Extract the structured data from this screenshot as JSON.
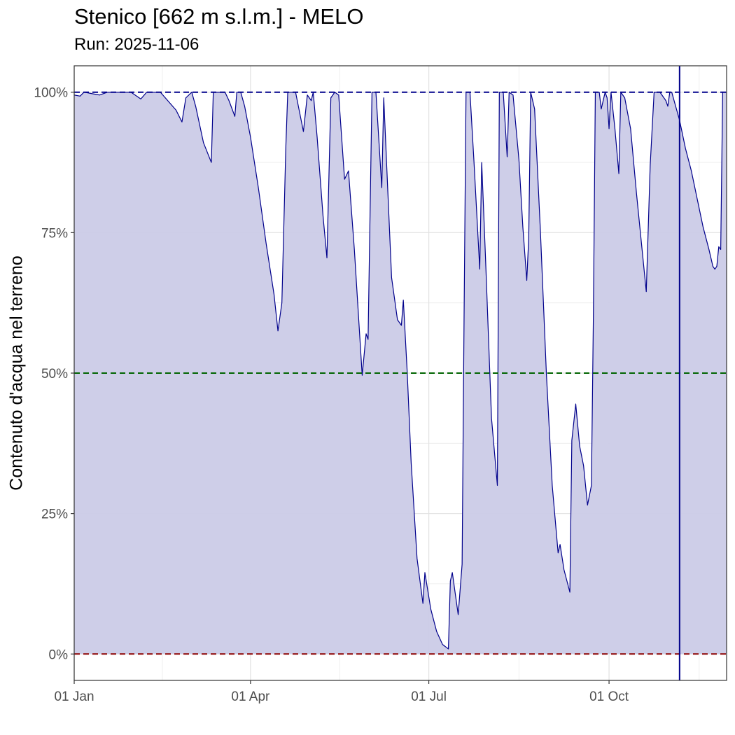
{
  "chart_data": {
    "type": "area",
    "title": "Stenico [662 m s.l.m.] - MELO",
    "subtitle": "Run: 2025-11-06",
    "ylabel": "Contenuto d'acqua nel terreno",
    "xlabel": "",
    "x_range": [
      "2025-01-01",
      "2025-11-30"
    ],
    "y_range": [
      -0.047,
      1.047
    ],
    "x_ticks": [
      {
        "date": "2025-01-01",
        "label": "01 Jan"
      },
      {
        "date": "2025-04-01",
        "label": "01 Apr"
      },
      {
        "date": "2025-07-01",
        "label": "01 Jul"
      },
      {
        "date": "2025-10-01",
        "label": "01 Oct"
      }
    ],
    "y_ticks": [
      {
        "value": 0,
        "label": "0%"
      },
      {
        "value": 0.25,
        "label": "25%"
      },
      {
        "value": 0.5,
        "label": "50%"
      },
      {
        "value": 0.75,
        "label": "75%"
      },
      {
        "value": 1,
        "label": "100%"
      }
    ],
    "reference_lines": [
      {
        "value": 1.0,
        "color": "#00008b",
        "style": "dashed"
      },
      {
        "value": 0.5,
        "color": "#006400",
        "style": "dashed"
      },
      {
        "value": 0.0,
        "color": "#8b0000",
        "style": "dashed"
      }
    ],
    "vertical_line": {
      "date": "2025-11-06",
      "color": "#00008b"
    },
    "grid": true,
    "series": [
      {
        "color": "#00008b",
        "fill": "#cbcbe7",
        "points": [
          [
            "2025-01-01",
            0.995
          ],
          [
            "2025-01-04",
            0.993
          ],
          [
            "2025-01-06",
            1.0
          ],
          [
            "2025-01-14",
            0.995
          ],
          [
            "2025-01-18",
            1.0
          ],
          [
            "2025-01-30",
            1.0
          ],
          [
            "2025-02-04",
            0.988
          ],
          [
            "2025-02-07",
            1.0
          ],
          [
            "2025-02-14",
            1.0
          ],
          [
            "2025-02-22",
            0.968
          ],
          [
            "2025-02-25",
            0.947
          ],
          [
            "2025-02-27",
            0.99
          ],
          [
            "2025-03-02",
            1.0
          ],
          [
            "2025-03-04",
            0.975
          ],
          [
            "2025-03-08",
            0.91
          ],
          [
            "2025-03-12",
            0.875
          ],
          [
            "2025-03-13",
            1.0
          ],
          [
            "2025-03-19",
            1.0
          ],
          [
            "2025-03-21",
            0.985
          ],
          [
            "2025-03-24",
            0.957
          ],
          [
            "2025-03-25",
            1.0
          ],
          [
            "2025-03-27",
            1.0
          ],
          [
            "2025-03-29",
            0.975
          ],
          [
            "2025-04-01",
            0.92
          ],
          [
            "2025-04-05",
            0.83
          ],
          [
            "2025-04-09",
            0.73
          ],
          [
            "2025-04-13",
            0.64
          ],
          [
            "2025-04-15",
            0.575
          ],
          [
            "2025-04-17",
            0.625
          ],
          [
            "2025-04-19",
            0.9
          ],
          [
            "2025-04-20",
            1.0
          ],
          [
            "2025-04-24",
            1.0
          ],
          [
            "2025-04-26",
            0.965
          ],
          [
            "2025-04-28",
            0.93
          ],
          [
            "2025-04-30",
            0.995
          ],
          [
            "2025-05-02",
            0.985
          ],
          [
            "2025-05-03",
            1.0
          ],
          [
            "2025-05-05",
            0.92
          ],
          [
            "2025-05-08",
            0.78
          ],
          [
            "2025-05-10",
            0.705
          ],
          [
            "2025-05-12",
            0.99
          ],
          [
            "2025-05-14",
            1.0
          ],
          [
            "2025-05-16",
            0.995
          ],
          [
            "2025-05-19",
            0.845
          ],
          [
            "2025-05-21",
            0.86
          ],
          [
            "2025-05-24",
            0.72
          ],
          [
            "2025-05-28",
            0.496
          ],
          [
            "2025-05-30",
            0.57
          ],
          [
            "2025-05-31",
            0.56
          ],
          [
            "2025-06-02",
            1.0
          ],
          [
            "2025-06-04",
            1.0
          ],
          [
            "2025-06-07",
            0.83
          ],
          [
            "2025-06-08",
            0.99
          ],
          [
            "2025-06-10",
            0.83
          ],
          [
            "2025-06-12",
            0.67
          ],
          [
            "2025-06-15",
            0.595
          ],
          [
            "2025-06-17",
            0.585
          ],
          [
            "2025-06-18",
            0.63
          ],
          [
            "2025-06-20",
            0.5
          ],
          [
            "2025-06-22",
            0.34
          ],
          [
            "2025-06-25",
            0.17
          ],
          [
            "2025-06-28",
            0.09
          ],
          [
            "2025-06-29",
            0.145
          ],
          [
            "2025-07-02",
            0.08
          ],
          [
            "2025-07-05",
            0.04
          ],
          [
            "2025-07-08",
            0.017
          ],
          [
            "2025-07-11",
            0.009
          ],
          [
            "2025-07-12",
            0.13
          ],
          [
            "2025-07-13",
            0.145
          ],
          [
            "2025-07-16",
            0.07
          ],
          [
            "2025-07-18",
            0.16
          ],
          [
            "2025-07-19",
            0.6
          ],
          [
            "2025-07-20",
            1.0
          ],
          [
            "2025-07-22",
            1.0
          ],
          [
            "2025-07-24",
            0.88
          ],
          [
            "2025-07-27",
            0.685
          ],
          [
            "2025-07-28",
            0.875
          ],
          [
            "2025-07-30",
            0.7
          ],
          [
            "2025-08-02",
            0.42
          ],
          [
            "2025-08-05",
            0.3
          ],
          [
            "2025-08-06",
            1.0
          ],
          [
            "2025-08-08",
            1.0
          ],
          [
            "2025-08-10",
            0.885
          ],
          [
            "2025-08-11",
            1.0
          ],
          [
            "2025-08-13",
            0.995
          ],
          [
            "2025-08-16",
            0.88
          ],
          [
            "2025-08-18",
            0.76
          ],
          [
            "2025-08-20",
            0.665
          ],
          [
            "2025-08-21",
            0.74
          ],
          [
            "2025-08-22",
            1.0
          ],
          [
            "2025-08-24",
            0.97
          ],
          [
            "2025-08-27",
            0.75
          ],
          [
            "2025-08-30",
            0.5
          ],
          [
            "2025-09-02",
            0.3
          ],
          [
            "2025-09-05",
            0.18
          ],
          [
            "2025-09-06",
            0.195
          ],
          [
            "2025-09-08",
            0.15
          ],
          [
            "2025-09-11",
            0.11
          ],
          [
            "2025-09-12",
            0.38
          ],
          [
            "2025-09-14",
            0.445
          ],
          [
            "2025-09-16",
            0.37
          ],
          [
            "2025-09-18",
            0.335
          ],
          [
            "2025-09-20",
            0.265
          ],
          [
            "2025-09-22",
            0.3
          ],
          [
            "2025-09-23",
            0.6
          ],
          [
            "2025-09-24",
            1.0
          ],
          [
            "2025-09-26",
            1.0
          ],
          [
            "2025-09-27",
            0.97
          ],
          [
            "2025-09-29",
            1.0
          ],
          [
            "2025-09-30",
            0.99
          ],
          [
            "2025-10-01",
            0.935
          ],
          [
            "2025-10-02",
            1.0
          ],
          [
            "2025-10-04",
            0.935
          ],
          [
            "2025-10-06",
            0.855
          ],
          [
            "2025-10-07",
            1.0
          ],
          [
            "2025-10-09",
            0.99
          ],
          [
            "2025-10-12",
            0.935
          ],
          [
            "2025-10-15",
            0.82
          ],
          [
            "2025-10-18",
            0.715
          ],
          [
            "2025-10-20",
            0.645
          ],
          [
            "2025-10-22",
            0.87
          ],
          [
            "2025-10-24",
            1.0
          ],
          [
            "2025-10-27",
            1.0
          ],
          [
            "2025-10-30",
            0.985
          ],
          [
            "2025-10-31",
            0.975
          ],
          [
            "2025-11-01",
            1.0
          ],
          [
            "2025-11-02",
            1.0
          ],
          [
            "2025-11-04",
            0.975
          ],
          [
            "2025-11-06",
            0.95
          ],
          [
            "2025-11-09",
            0.9
          ],
          [
            "2025-11-12",
            0.86
          ],
          [
            "2025-11-15",
            0.81
          ],
          [
            "2025-11-18",
            0.76
          ],
          [
            "2025-11-21",
            0.72
          ],
          [
            "2025-11-23",
            0.69
          ],
          [
            "2025-11-24",
            0.685
          ],
          [
            "2025-11-25",
            0.69
          ],
          [
            "2025-11-26",
            0.725
          ],
          [
            "2025-11-27",
            0.72
          ],
          [
            "2025-11-28",
            1.0
          ],
          [
            "2025-11-30",
            1.0
          ]
        ]
      }
    ]
  }
}
